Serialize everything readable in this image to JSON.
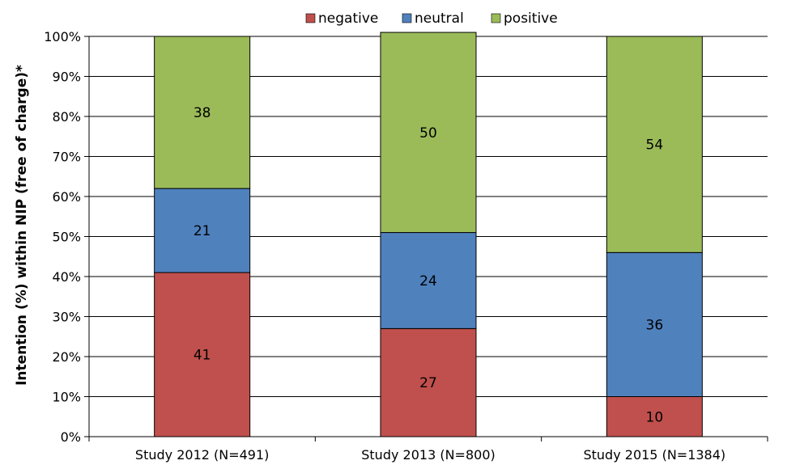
{
  "chart_data": {
    "type": "bar",
    "stacked": true,
    "categories": [
      "Study 2012 (N=491)",
      "Study 2013 (N=800)",
      "Study 2015 (N=1384)"
    ],
    "series": [
      {
        "name": "negative",
        "values": [
          41,
          27,
          10
        ],
        "color": "#C0504D"
      },
      {
        "name": "neutral",
        "values": [
          21,
          24,
          36
        ],
        "color": "#4F81BD"
      },
      {
        "name": "positive",
        "values": [
          38,
          50,
          54
        ],
        "color": "#9BBB59"
      }
    ],
    "ylabel": "Intention (%) within NIP (free of charge)*",
    "ylim": [
      0,
      100
    ],
    "yticks": [
      0,
      10,
      20,
      30,
      40,
      50,
      60,
      70,
      80,
      90,
      100
    ],
    "ytick_suffix": "%",
    "grid": true,
    "legend": "top"
  }
}
